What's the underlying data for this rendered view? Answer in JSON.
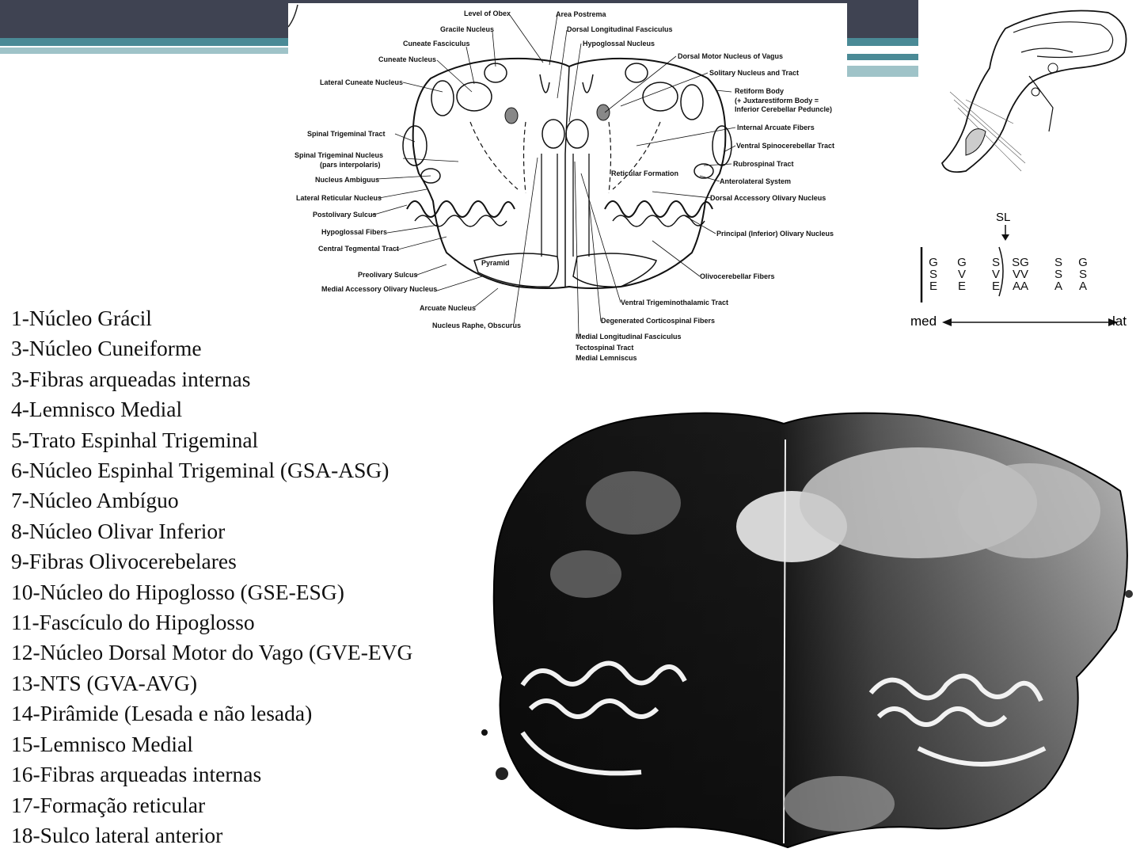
{
  "diagram": {
    "labels_left": [
      "Level of Obex",
      "Gracile Nucleus",
      "Cuneate Fasciculus",
      "Cuneate Nucleus",
      "Lateral Cuneate Nucleus",
      "Spinal Trigeminal Tract",
      "Spinal Trigeminal Nucleus",
      "(pars interpolaris)",
      "Nucleus Ambiguus",
      "Lateral Reticular Nucleus",
      "Postolivary Sulcus",
      "Hypoglossal Fibers",
      "Central Tegmental Tract",
      "Preolivary Sulcus",
      "Medial Accessory Olivary Nucleus",
      "Arcuate Nucleus",
      "Nucleus Raphe, Obscurus"
    ],
    "labels_right": [
      "Area Postrema",
      "Dorsal Longitudinal Fasciculus",
      "Hypoglossal Nucleus",
      "Dorsal Motor Nucleus of Vagus",
      "Solitary Nucleus and Tract",
      "Retiform Body",
      "(+ Juxtarestiform Body =",
      "Inferior Cerebellar Peduncle)",
      "Internal Arcuate Fibers",
      "Ventral Spinocerebellar Tract",
      "Rubrospinal Tract",
      "Anterolateral System",
      "Dorsal Accessory Olivary Nucleus",
      "Principal (Inferior) Olivary Nucleus",
      "Olivocerebellar Fibers",
      "Ventral Trigeminothalamic Tract",
      "Degenerated Corticospinal Fibers",
      "Medial Longitudinal Fasciculus",
      "Tectospinal Tract",
      "Medial Lemniscus"
    ],
    "inner_labels": [
      "Reticular Formation",
      "Pyramid"
    ]
  },
  "legend": [
    "1-Núcleo Grácil",
    "3-Núcleo Cuneiforme",
    "3-Fibras arqueadas internas",
    "4-Lemnisco Medial",
    "5-Trato Espinhal Trigeminal",
    "6-Núcleo Espinhal Trigeminal (GSA-ASG)",
    "7-Núcleo Ambíguo",
    "8-Núcleo Olivar Inferior",
    "9-Fibras Olivocerebelares",
    "10-Núcleo do Hipoglosso (GSE-ESG)",
    "11-Fascículo do Hipoglosso",
    "12-Núcleo Dorsal Motor do Vago (GVE-EVG",
    "13-NTS (GVA-AVG)",
    "14-Pirâmide (Lesada e não lesada)",
    "15-Lemnisco Medial",
    "16-Fibras arqueadas internas",
    "17-Formação reticular",
    "18-Sulco lateral anterior"
  ],
  "columns": {
    "sl": "SL",
    "items": [
      [
        "G",
        "S",
        "E"
      ],
      [
        "G",
        "V",
        "E"
      ],
      [
        "S",
        "V",
        "E"
      ],
      [
        "SG",
        "VV",
        "AA"
      ],
      [
        "S",
        "S",
        "A"
      ],
      [
        "G",
        "S",
        "A"
      ]
    ],
    "med": "med",
    "lat": "lat"
  },
  "colors": {
    "header": "#3f4352",
    "accent": "#4a8a96",
    "accent_light": "#9fc3c8"
  }
}
